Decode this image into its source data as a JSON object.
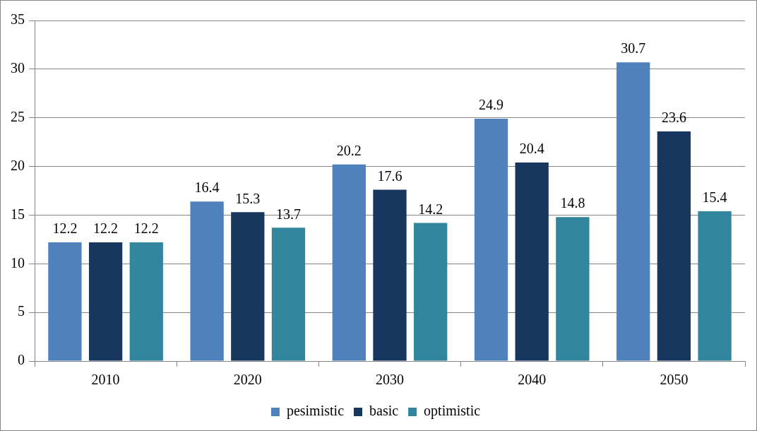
{
  "chart_data": {
    "type": "bar",
    "categories": [
      "2010",
      "2020",
      "2030",
      "2040",
      "2050"
    ],
    "series": [
      {
        "name": "pesimistic",
        "color": "#4f81bd",
        "values": [
          12.2,
          16.4,
          20.2,
          24.9,
          30.7
        ]
      },
      {
        "name": "basic",
        "color": "#17375e",
        "values": [
          12.2,
          15.3,
          17.6,
          20.4,
          23.6
        ]
      },
      {
        "name": "optimistic",
        "color": "#31859c",
        "values": [
          12.2,
          13.7,
          14.2,
          14.8,
          15.4
        ]
      }
    ],
    "ylim": [
      0,
      35
    ],
    "yticks": [
      0,
      5,
      10,
      15,
      20,
      25,
      30,
      35
    ],
    "grid": "y",
    "legend": "bottom",
    "data_labels": true
  }
}
